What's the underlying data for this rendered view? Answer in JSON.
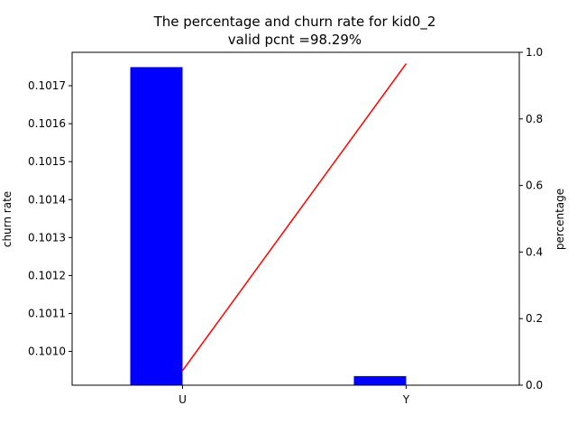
{
  "chart_data": {
    "type": "bar",
    "title": "The percentage and churn rate for kid0_2",
    "subtitle": "valid pcnt =98.29%",
    "categories": [
      "U",
      "Y"
    ],
    "ylabel": "churn rate",
    "y2label": "percentage",
    "series": [
      {
        "kind": "bar",
        "axis": "left",
        "color": "#0000ff",
        "values": [
          0.101749,
          0.100935
        ]
      },
      {
        "kind": "line",
        "axis": "right",
        "color": "#ff0000",
        "values": [
          0.044,
          0.966
        ]
      }
    ],
    "ylim": [
      0.100911,
      0.101788
    ],
    "y2lim": [
      0.0,
      1.0
    ],
    "yticks": [
      "0.1010",
      "0.1011",
      "0.1012",
      "0.1013",
      "0.1014",
      "0.1015",
      "0.1016",
      "0.1017"
    ],
    "y2ticks": [
      "0.0",
      "0.2",
      "0.4",
      "0.6",
      "0.8",
      "1.0"
    ],
    "grid": false
  }
}
